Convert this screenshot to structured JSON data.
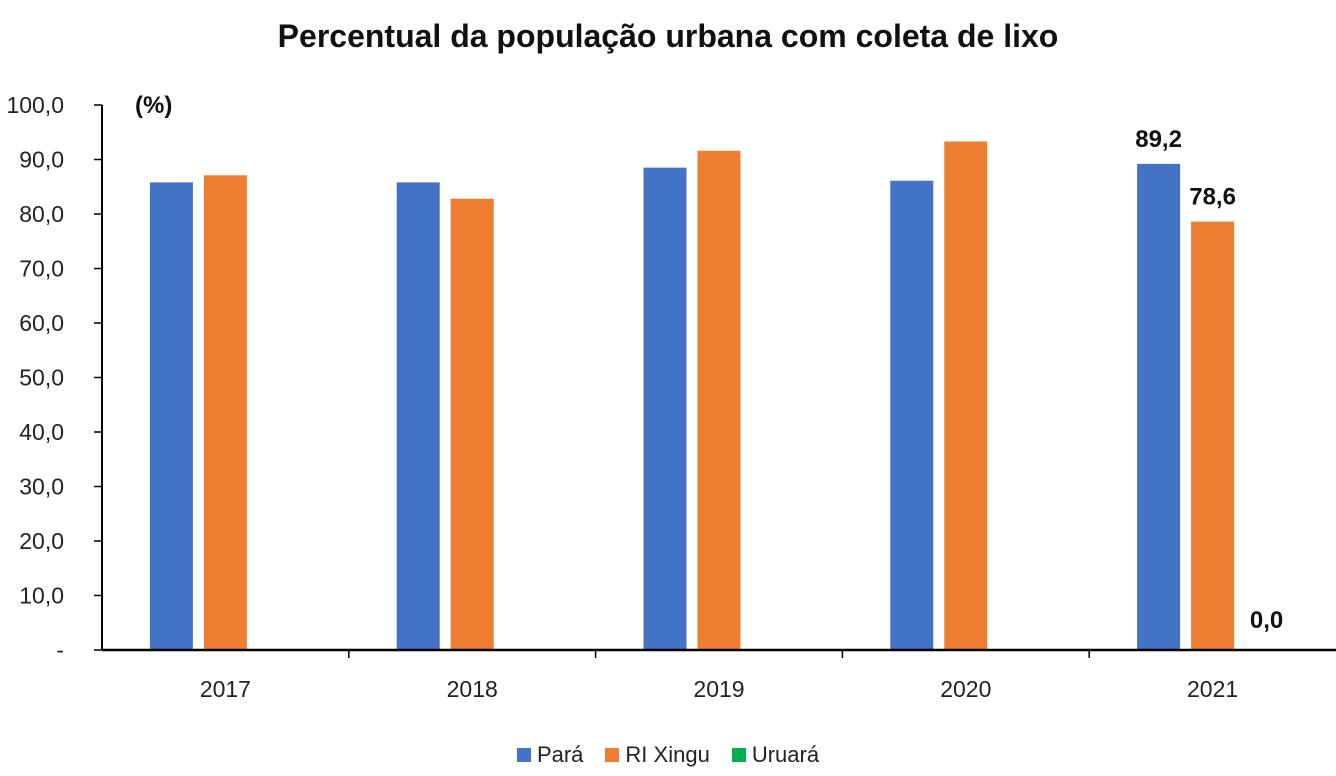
{
  "chart_data": {
    "type": "bar",
    "title": "Percentual da população urbana com coleta de lixo",
    "unit_label": "(%)",
    "categories": [
      "2017",
      "2018",
      "2019",
      "2020",
      "2021"
    ],
    "series": [
      {
        "name": "Pará",
        "color": "#4472C4",
        "values": [
          85.8,
          85.8,
          88.5,
          86.1,
          89.2
        ]
      },
      {
        "name": "RI Xingu",
        "color": "#ED7D31",
        "values": [
          87.1,
          82.8,
          91.6,
          93.3,
          78.6
        ]
      },
      {
        "name": "Uruará",
        "color": "#00B050",
        "values": [
          null,
          null,
          null,
          null,
          0.0
        ]
      }
    ],
    "ylim": [
      0,
      100
    ],
    "yticks": [
      "-",
      "10,0",
      "20,0",
      "30,0",
      "40,0",
      "50,0",
      "60,0",
      "70,0",
      "80,0",
      "90,0",
      "100,0"
    ],
    "data_labels": [
      {
        "series": 0,
        "category": 4,
        "text": "89,2"
      },
      {
        "series": 1,
        "category": 4,
        "text": "78,6"
      },
      {
        "series": 2,
        "category": 4,
        "text": "0,0"
      }
    ],
    "legend_position": "bottom",
    "grid": false
  }
}
